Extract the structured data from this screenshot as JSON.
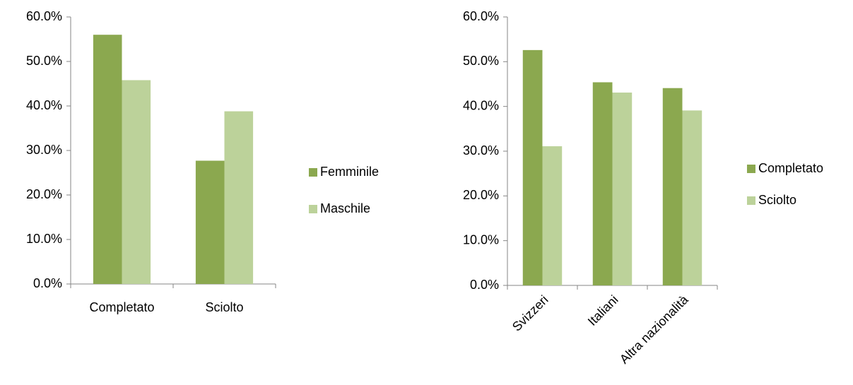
{
  "chart_data": [
    {
      "type": "bar",
      "categories": [
        "Completato",
        "Sciolto"
      ],
      "series": [
        {
          "name": "Femminile",
          "color": "#8ba84f",
          "values": [
            56.0,
            27.7
          ]
        },
        {
          "name": "Maschile",
          "color": "#bcd29a",
          "values": [
            45.8,
            38.8
          ]
        }
      ],
      "ylim": [
        0,
        60
      ],
      "yticks": [
        {
          "value": 0,
          "label": "0.0%"
        },
        {
          "value": 10,
          "label": "10.0%"
        },
        {
          "value": 20,
          "label": "20.0%"
        },
        {
          "value": 30,
          "label": "30.0%"
        },
        {
          "value": 40,
          "label": "40.0%"
        },
        {
          "value": 50,
          "label": "50.0%"
        },
        {
          "value": 60,
          "label": "60.0%"
        }
      ],
      "legend": "right"
    },
    {
      "type": "bar",
      "categories": [
        "Svizzeri",
        "Italiani",
        "Altra nazionalità"
      ],
      "series": [
        {
          "name": "Completato",
          "color": "#8ba84f",
          "values": [
            52.6,
            45.4,
            44.1
          ]
        },
        {
          "name": "Sciolto",
          "color": "#bcd29a",
          "values": [
            31.1,
            43.1,
            39.1
          ]
        }
      ],
      "ylim": [
        0,
        60
      ],
      "yticks": [
        {
          "value": 0,
          "label": "0.0%"
        },
        {
          "value": 10,
          "label": "10.0%"
        },
        {
          "value": 20,
          "label": "20.0%"
        },
        {
          "value": 30,
          "label": "30.0%"
        },
        {
          "value": 40,
          "label": "40.0%"
        },
        {
          "value": 50,
          "label": "50.0%"
        },
        {
          "value": 60,
          "label": "60.0%"
        }
      ],
      "legend": "right",
      "rotate_x_labels": true
    }
  ]
}
